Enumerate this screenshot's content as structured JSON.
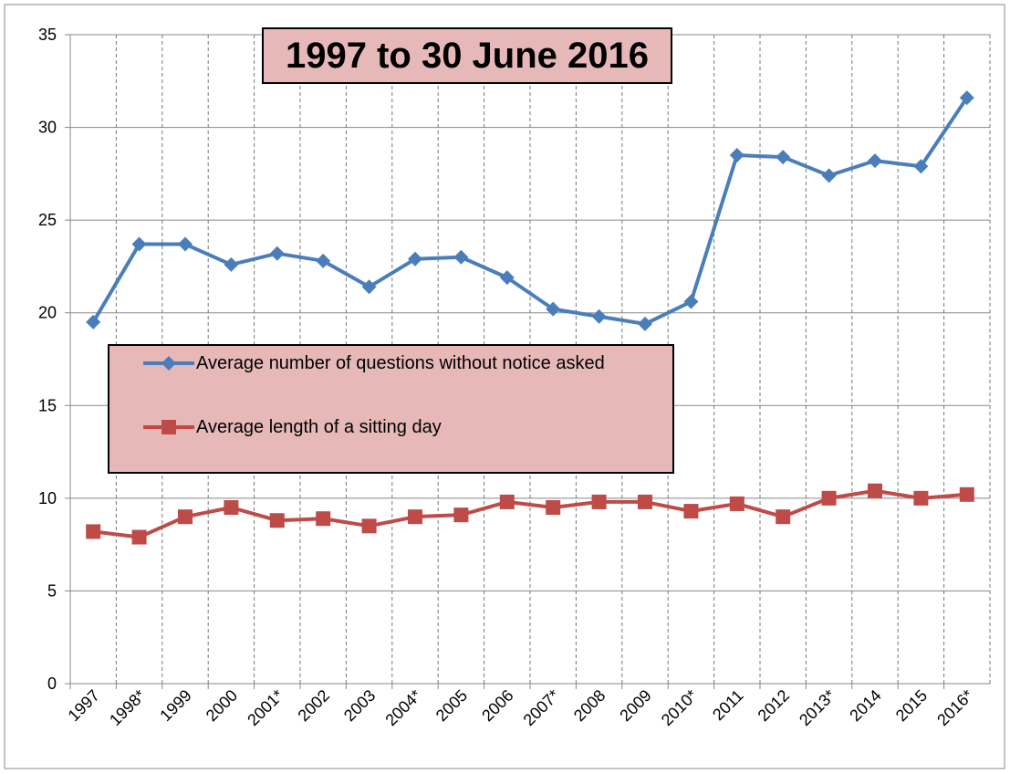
{
  "chart_data": {
    "type": "line",
    "title": "1997 to 30 June 2016",
    "categories": [
      "1997",
      "1998*",
      "1999",
      "2000",
      "2001*",
      "2002",
      "2003",
      "2004*",
      "2005",
      "2006",
      "2007*",
      "2008",
      "2009",
      "2010*",
      "2011",
      "2012",
      "2013*",
      "2014",
      "2015",
      "2016*"
    ],
    "series": [
      {
        "name": "Average number of questions without notice asked",
        "color": "#4a7ebb",
        "marker": "diamond",
        "values": [
          19.5,
          23.7,
          23.7,
          22.6,
          23.2,
          22.8,
          21.4,
          22.9,
          23.0,
          21.9,
          20.2,
          19.8,
          19.4,
          20.6,
          28.5,
          28.4,
          27.4,
          28.2,
          27.9,
          31.6
        ]
      },
      {
        "name": "Average length of a sitting day",
        "color": "#be4b48",
        "marker": "square",
        "values": [
          8.2,
          7.9,
          9.0,
          9.5,
          8.8,
          8.9,
          8.5,
          9.0,
          9.1,
          9.8,
          9.5,
          9.8,
          9.8,
          9.3,
          9.7,
          9.0,
          10.0,
          10.4,
          10.0,
          10.2
        ]
      }
    ],
    "ylim": [
      0,
      35
    ],
    "yticks": [
      0,
      5,
      10,
      15,
      20,
      25,
      30,
      35
    ],
    "grid": true,
    "legend": "center-left"
  }
}
